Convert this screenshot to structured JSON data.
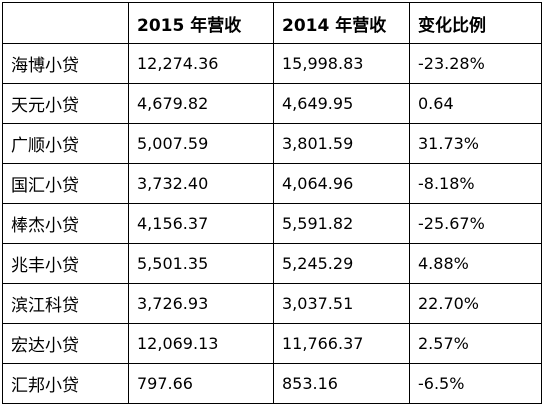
{
  "table": {
    "headers": [
      "",
      "2015 年营收",
      "2014 年营收",
      "变化比例"
    ],
    "rows": [
      {
        "company": "海博小贷",
        "rev_2015": "12,274.36",
        "rev_2014": "15,998.83",
        "change": "-23.28%"
      },
      {
        "company": "天元小贷",
        "rev_2015": "4,679.82",
        "rev_2014": "4,649.95",
        "change": "0.64"
      },
      {
        "company": "广顺小贷",
        "rev_2015": "5,007.59",
        "rev_2014": "3,801.59",
        "change": "31.73%"
      },
      {
        "company": "国汇小贷",
        "rev_2015": "3,732.40",
        "rev_2014": "4,064.96",
        "change": "-8.18%"
      },
      {
        "company": "棒杰小贷",
        "rev_2015": "4,156.37",
        "rev_2014": "5,591.82",
        "change": "-25.67%"
      },
      {
        "company": "兆丰小贷",
        "rev_2015": "5,501.35",
        "rev_2014": "5,245.29",
        "change": "4.88%"
      },
      {
        "company": "滨江科贷",
        "rev_2015": "3,726.93",
        "rev_2014": "3,037.51",
        "change": "22.70%"
      },
      {
        "company": "宏达小贷",
        "rev_2015": "12,069.13",
        "rev_2014": "11,766.37",
        "change": "2.57%"
      },
      {
        "company": "汇邦小贷",
        "rev_2015": "797.66",
        "rev_2014": "853.16",
        "change": "-6.5%"
      }
    ]
  }
}
